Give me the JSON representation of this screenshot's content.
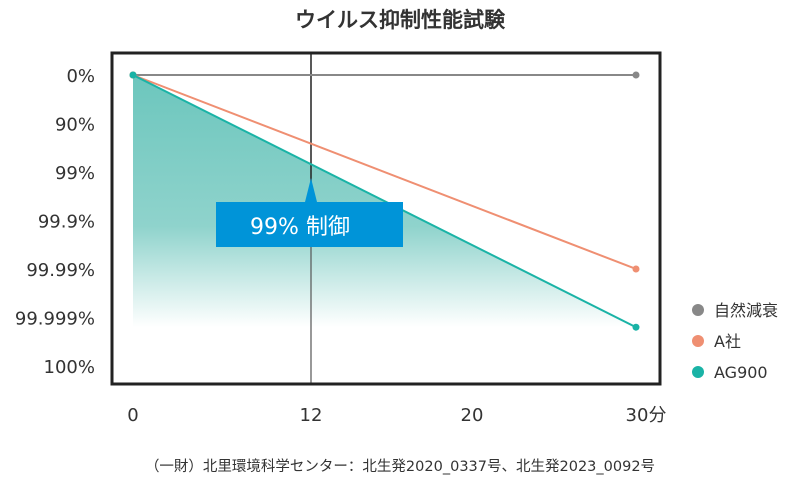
{
  "chart_data": {
    "type": "line",
    "title": "ウイルス抑制性能試験",
    "xlabel": "",
    "ylabel": "",
    "x_ticks": [
      "0",
      "12",
      "20",
      "30分"
    ],
    "x": [
      0,
      30
    ],
    "y_ticks": [
      "0%",
      "90%",
      "99%",
      "99.9%",
      "99.99%",
      "99.999%",
      "100%"
    ],
    "y_unit": "log reduction (0 = 0%, 1 = 90%, 2 = 99%, ...)",
    "ylim": [
      0,
      6
    ],
    "series": [
      {
        "name": "自然減衰",
        "color": "#888888",
        "values": [
          0,
          0
        ]
      },
      {
        "name": "A社",
        "color": "#ef8f72",
        "values": [
          0,
          4.0
        ]
      },
      {
        "name": "AG900",
        "color": "#1ab3a6",
        "values": [
          0,
          5.2
        ]
      }
    ],
    "annotation": {
      "text": "99% 制御",
      "x": 12,
      "color": "#0094d8"
    },
    "marker_line_x": 12,
    "legend_position": "right",
    "footnote": "（一財）北里環境科学センター：北生発2020_0337号、北生発2023_0092号"
  }
}
